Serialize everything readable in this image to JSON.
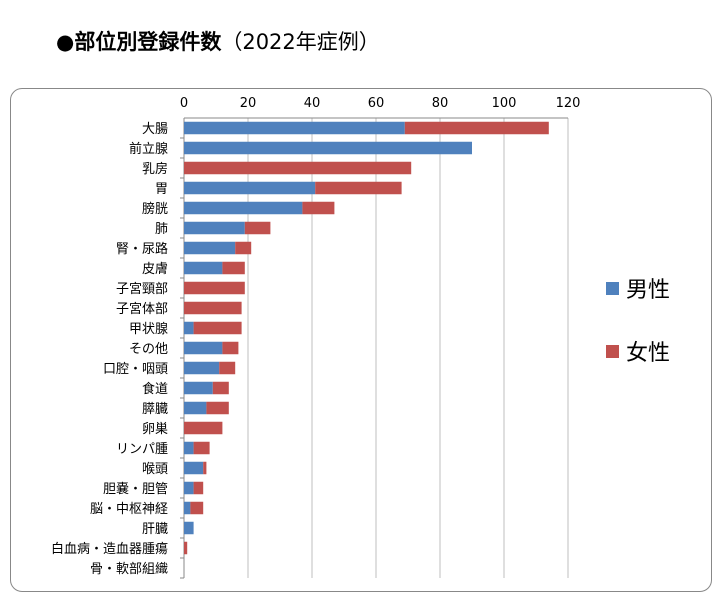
{
  "title": "●部位別登録件数",
  "subtitle": "（2022年症例）",
  "chart_data": {
    "type": "bar",
    "orientation": "horizontal",
    "stacked": true,
    "title": "●部位別登録件数（2022年症例）",
    "categories": [
      "大腸",
      "前立腺",
      "乳房",
      "胃",
      "膀胱",
      "肺",
      "腎・尿路",
      "皮膚",
      "子宮頸部",
      "子宮体部",
      "甲状腺",
      "その他",
      "口腔・咽頭",
      "食道",
      "膵臓",
      "卵巣",
      "リンパ腫",
      "喉頭",
      "胆嚢・胆管",
      "脳・中枢神経",
      "肝臓",
      "白血病・造血器腫瘍",
      "骨・軟部組織"
    ],
    "series": [
      {
        "name": "男性",
        "color": "#4F81BD",
        "values": [
          69,
          90,
          0,
          41,
          37,
          19,
          16,
          12,
          0,
          0,
          3,
          12,
          11,
          9,
          7,
          0,
          3,
          6,
          3,
          2,
          3,
          0,
          0
        ]
      },
      {
        "name": "女性",
        "color": "#C0504D",
        "values": [
          45,
          0,
          71,
          27,
          10,
          8,
          5,
          7,
          19,
          18,
          15,
          5,
          5,
          5,
          7,
          12,
          5,
          1,
          3,
          4,
          0,
          1,
          0
        ]
      }
    ],
    "xlim": [
      0,
      120
    ],
    "xticks": [
      "0",
      "20",
      "40",
      "60",
      "80",
      "100",
      "120"
    ],
    "grid": true,
    "legend": "right"
  }
}
